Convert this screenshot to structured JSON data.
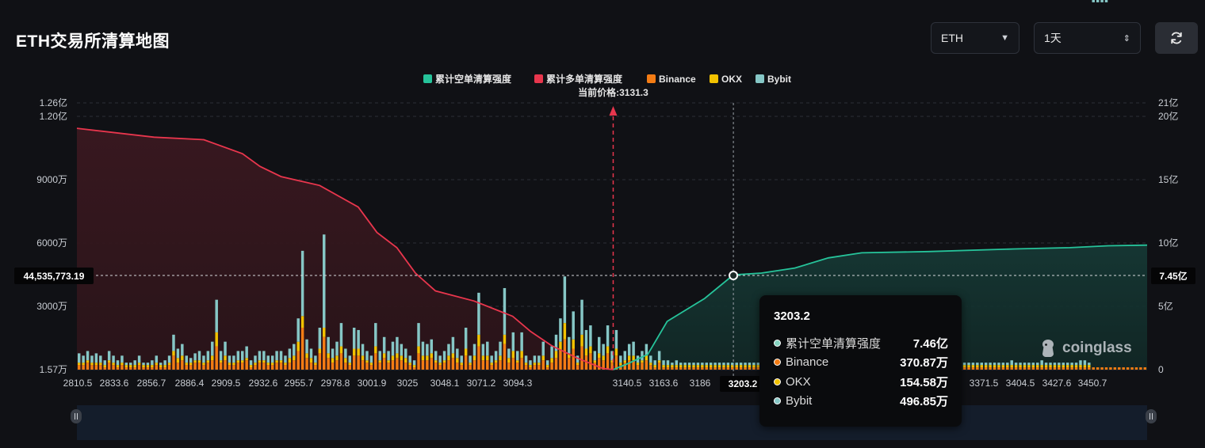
{
  "page": {
    "title": "ETH交易所清算地图"
  },
  "controls": {
    "coin": {
      "value": "ETH"
    },
    "range": {
      "value": "1天"
    },
    "refresh_icon": "refresh-icon"
  },
  "brand": {
    "name": "coinglass"
  },
  "colors": {
    "short_line": "#26c39a",
    "long_line": "#e8364d",
    "binance": "#f47c14",
    "okx": "#f2c200",
    "bybit": "#86c7c6",
    "current_price": "#e8364d"
  },
  "chart_data": {
    "type": "bar",
    "title": "",
    "current_price_label": "当前价格:3131.3",
    "current_price": 3131.3,
    "legend": [
      {
        "name": "累计空单清算强度",
        "color": "#26c39a"
      },
      {
        "name": "累计多单清算强度",
        "color": "#e8364d"
      },
      {
        "name": "Binance",
        "color": "#f47c14"
      },
      {
        "name": "OKX",
        "color": "#f2c200"
      },
      {
        "name": "Bybit",
        "color": "#86c7c6"
      }
    ],
    "legend_position": "top-center",
    "x_tick_labels": [
      "2810.5",
      "2833.6",
      "2856.7",
      "2886.4",
      "2909.5",
      "2932.6",
      "2955.7",
      "2978.8",
      "3001.9",
      "3025",
      "3048.1",
      "3071.2",
      "3094.3",
      "3140.5",
      "3163.6",
      "3186",
      "3203.2",
      "3348.4",
      "3371.5",
      "3404.5",
      "3427.6",
      "3450.7"
    ],
    "x_range": [
      2810.5,
      3450.7
    ],
    "y_left_ticks": [
      "1.57万",
      "3000万",
      "6000万",
      "9000万",
      "1.20亿",
      "1.26亿"
    ],
    "y_left_range": [
      15700,
      126000000
    ],
    "y_right_ticks": [
      "0",
      "5亿",
      "10亿",
      "15亿",
      "20亿",
      "21亿"
    ],
    "y_right_range": [
      0,
      2100000000
    ],
    "grid": true,
    "crosshair": {
      "x": 3203.2,
      "left_value_label": "44,535,773.19",
      "right_value_label": "7.45亿"
    },
    "bars": {
      "bybit": [
        4,
        3,
        4,
        3,
        4,
        3,
        2,
        4,
        3,
        2,
        3,
        1,
        1,
        2,
        3,
        1,
        1,
        2,
        3,
        1,
        2,
        3,
        7,
        4,
        5,
        3,
        2,
        3,
        4,
        3,
        4,
        6,
        14,
        4,
        6,
        3,
        3,
        4,
        4,
        5,
        2,
        3,
        4,
        4,
        3,
        3,
        4,
        4,
        3,
        4,
        5,
        10,
        28,
        6,
        4,
        3,
        9,
        40,
        7,
        4,
        6,
        10,
        4,
        3,
        9,
        8,
        5,
        4,
        3,
        10,
        4,
        7,
        4,
        6,
        7,
        5,
        4,
        3,
        2,
        10,
        6,
        5,
        6,
        4,
        3,
        4,
        5,
        7,
        4,
        3,
        9,
        3,
        5,
        18,
        5,
        6,
        3,
        4,
        6,
        20,
        4,
        8,
        4,
        8,
        3,
        2,
        3,
        3,
        6,
        2,
        5,
        7,
        10,
        20,
        7,
        12,
        3,
        15,
        8,
        9,
        4,
        7,
        5,
        9,
        4,
        8,
        3,
        4,
        5,
        6,
        3,
        4,
        5,
        3,
        2,
        4,
        2,
        2,
        1,
        2,
        1,
        1,
        1,
        1,
        1,
        1,
        1,
        1,
        1,
        1,
        1,
        1,
        1,
        1,
        1,
        1,
        1,
        1,
        1,
        1,
        1,
        1,
        1,
        1,
        1,
        1,
        1,
        1,
        1,
        1,
        1,
        1,
        1,
        1,
        1,
        1,
        1,
        1,
        1,
        1,
        1,
        1,
        1,
        1,
        1,
        1,
        1,
        1,
        1,
        1,
        1,
        1,
        1,
        1,
        1,
        1,
        1,
        1,
        1,
        1,
        1,
        1,
        1,
        1,
        1,
        1,
        1,
        1,
        1,
        1,
        1,
        1,
        1,
        1,
        1,
        1,
        1,
        2,
        1,
        1,
        1,
        1,
        1,
        1,
        2,
        1,
        1,
        1,
        1,
        1,
        1,
        1,
        1,
        2,
        2,
        1,
        1,
        1,
        1,
        1
      ],
      "okx": [
        1,
        1,
        1,
        1,
        1,
        1,
        1,
        1,
        1,
        1,
        1,
        1,
        1,
        1,
        1,
        1,
        1,
        1,
        1,
        1,
        1,
        1,
        2,
        2,
        2,
        1,
        1,
        1,
        1,
        1,
        1,
        2,
        6,
        1,
        2,
        1,
        1,
        1,
        1,
        1,
        1,
        1,
        1,
        1,
        1,
        1,
        1,
        1,
        1,
        2,
        2,
        4,
        5,
        2,
        2,
        1,
        2,
        4,
        2,
        2,
        2,
        3,
        2,
        1,
        3,
        3,
        2,
        1,
        1,
        3,
        1,
        2,
        1,
        2,
        2,
        2,
        2,
        1,
        1,
        3,
        2,
        2,
        2,
        1,
        1,
        1,
        2,
        2,
        2,
        1,
        3,
        1,
        2,
        5,
        2,
        2,
        1,
        1,
        2,
        4,
        2,
        3,
        1,
        3,
        1,
        1,
        1,
        1,
        2,
        1,
        2,
        3,
        4,
        7,
        2,
        4,
        1,
        5,
        3,
        3,
        1,
        2,
        2,
        3,
        1,
        3,
        1,
        1,
        2,
        2,
        1,
        1,
        2,
        1,
        1,
        1,
        1,
        1,
        1,
        1,
        1,
        1,
        1,
        1,
        1,
        1,
        1,
        1,
        1,
        1,
        1,
        1,
        1,
        1,
        1,
        1,
        1,
        1,
        1,
        1,
        1,
        1,
        1,
        1,
        1,
        1,
        1,
        1,
        1,
        1,
        1,
        1,
        1,
        1,
        1,
        1,
        1,
        1,
        1,
        1,
        1,
        1,
        1,
        1,
        1,
        1,
        1,
        1,
        1,
        1,
        1,
        1,
        1,
        1,
        1,
        1,
        1,
        1,
        1,
        1,
        1,
        1,
        1,
        1,
        1,
        1,
        1,
        1,
        1,
        1,
        1,
        1,
        1,
        1,
        1,
        1,
        1,
        1,
        1,
        1,
        1,
        1,
        1,
        1,
        1,
        1,
        1,
        1,
        1,
        1,
        1,
        1,
        1,
        1,
        1,
        1
      ],
      "binance": [
        2,
        2,
        3,
        2,
        2,
        2,
        1,
        3,
        2,
        1,
        2,
        1,
        1,
        1,
        2,
        1,
        1,
        1,
        2,
        1,
        1,
        2,
        6,
        3,
        4,
        2,
        2,
        3,
        3,
        2,
        3,
        4,
        10,
        3,
        4,
        2,
        2,
        3,
        3,
        4,
        1,
        2,
        3,
        3,
        2,
        2,
        3,
        3,
        2,
        3,
        4,
        8,
        18,
        5,
        3,
        2,
        7,
        14,
        5,
        3,
        4,
        7,
        3,
        2,
        6,
        6,
        4,
        3,
        2,
        7,
        3,
        5,
        3,
        4,
        5,
        4,
        3,
        2,
        1,
        7,
        4,
        4,
        5,
        3,
        2,
        3,
        4,
        5,
        3,
        2,
        6,
        2,
        4,
        10,
        4,
        4,
        2,
        3,
        4,
        11,
        3,
        5,
        3,
        5,
        2,
        1,
        2,
        2,
        4,
        1,
        3,
        5,
        8,
        13,
        5,
        9,
        2,
        10,
        6,
        7,
        3,
        5,
        4,
        7,
        3,
        6,
        2,
        3,
        4,
        4,
        2,
        3,
        4,
        2,
        1,
        3,
        1,
        1,
        1,
        1,
        1,
        1,
        1,
        1,
        1,
        1,
        1,
        1,
        1,
        1,
        1,
        1,
        1,
        1,
        1,
        1,
        1,
        1,
        1,
        1,
        1,
        1,
        1,
        1,
        1,
        1,
        1,
        1,
        1,
        1,
        1,
        1,
        1,
        1,
        1,
        1,
        1,
        1,
        1,
        1,
        1,
        1,
        1,
        1,
        1,
        1,
        1,
        1,
        1,
        1,
        1,
        1,
        1,
        1,
        1,
        1,
        1,
        1,
        1,
        1,
        1,
        1,
        1,
        1,
        1,
        1,
        1,
        1,
        1,
        1,
        1,
        1,
        1,
        1,
        1,
        1,
        1,
        1,
        1,
        1,
        1,
        1,
        1,
        1,
        1,
        1,
        1,
        1,
        1,
        1,
        1,
        1,
        1,
        1,
        1,
        1,
        1,
        1,
        1,
        1,
        1,
        1,
        1,
        1,
        1,
        1,
        1,
        1,
        1
      ]
    },
    "long_cumulative": [
      [
        2810.5,
        1900000000
      ],
      [
        2856.7,
        1830000000
      ],
      [
        2886.4,
        1810000000
      ],
      [
        2909.5,
        1700000000
      ],
      [
        2920,
        1600000000
      ],
      [
        2932.6,
        1520000000
      ],
      [
        2955.7,
        1450000000
      ],
      [
        2978.8,
        1280000000
      ],
      [
        2990,
        1080000000
      ],
      [
        3001.9,
        960000000
      ],
      [
        3013,
        760000000
      ],
      [
        3025,
        620000000
      ],
      [
        3048.1,
        540000000
      ],
      [
        3071.2,
        420000000
      ],
      [
        3082,
        300000000
      ],
      [
        3094.3,
        190000000
      ],
      [
        3110,
        90000000
      ],
      [
        3125,
        10000000
      ],
      [
        3131.3,
        0
      ]
    ],
    "short_cumulative": [
      [
        3131.3,
        0
      ],
      [
        3140.5,
        50000000
      ],
      [
        3152,
        120000000
      ],
      [
        3163.6,
        380000000
      ],
      [
        3186,
        560000000
      ],
      [
        3203.2,
        746000000
      ],
      [
        3220,
        760000000
      ],
      [
        3240,
        800000000
      ],
      [
        3260,
        880000000
      ],
      [
        3280,
        920000000
      ],
      [
        3320,
        930000000
      ],
      [
        3371.5,
        950000000
      ],
      [
        3404.5,
        960000000
      ],
      [
        3427.6,
        975000000
      ],
      [
        3450.7,
        980000000
      ]
    ]
  },
  "tooltip": {
    "title": "3203.2",
    "rows": [
      {
        "name": "累计空单清算强度",
        "value": "7.46亿",
        "color": "#84d4c0"
      },
      {
        "name": "Binance",
        "value": "370.87万",
        "color": "#f47c14"
      },
      {
        "name": "OKX",
        "value": "154.58万",
        "color": "#f2c200"
      },
      {
        "name": "Bybit",
        "value": "496.85万",
        "color": "#86c7c6"
      }
    ]
  }
}
